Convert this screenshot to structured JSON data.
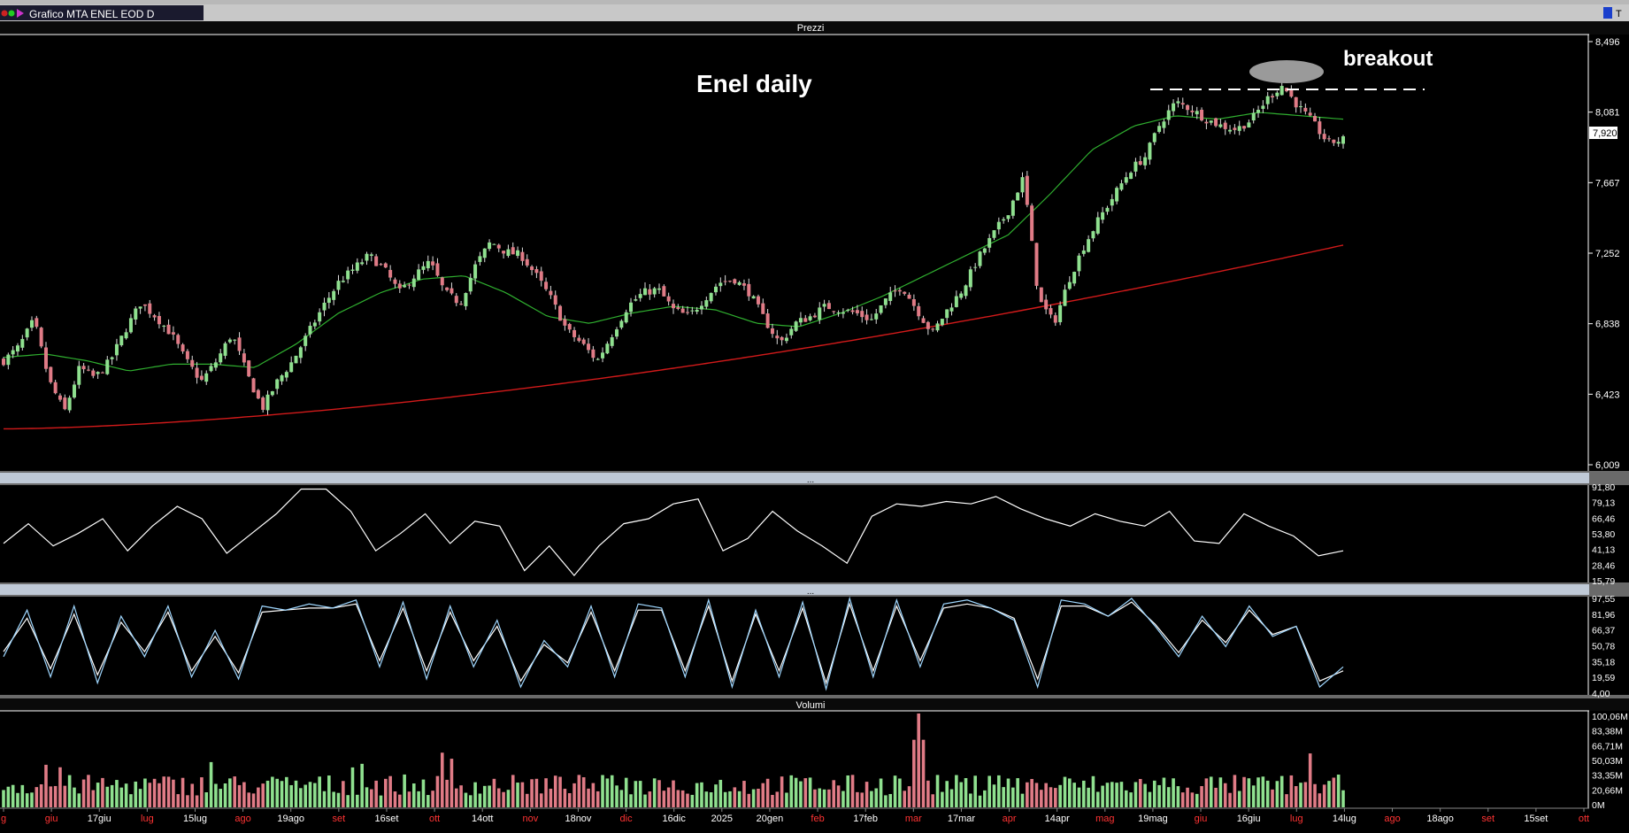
{
  "window": {
    "title": "Grafico MTA ENEL EOD D",
    "price_panel_title": "Prezzi",
    "volume_panel_title": "Volumi",
    "indicator_panel_title": "..."
  },
  "colors": {
    "background": "#000000",
    "up_candle": "#8fe08f",
    "down_candle": "#e07b86",
    "ma_short": "#2fae2f",
    "ma_long": "#d11a1a",
    "rsi_line": "#ffffff",
    "stoch_k": "#9fd7ff",
    "stoch_d": "#ffffff",
    "axis_text": "#ffffff",
    "month_text": "#ff3333"
  },
  "annotations": {
    "title": "Enel daily",
    "breakout": "breakout"
  },
  "price_axis": {
    "ticks": [
      "8,496",
      "8,081",
      "7,667",
      "7,252",
      "6,838",
      "6,423",
      "6,009"
    ],
    "last_price": "7,920"
  },
  "rsi_axis": {
    "ticks": [
      "91,80",
      "79,13",
      "66,46",
      "53,80",
      "41,13",
      "28,46",
      "15,79"
    ]
  },
  "stoch_axis": {
    "ticks": [
      "97,55",
      "81,96",
      "66,37",
      "50,78",
      "35,18",
      "19,59",
      "4,00"
    ]
  },
  "volume_axis": {
    "ticks": [
      "100,06M",
      "83,38M",
      "66,71M",
      "50,03M",
      "33,35M",
      "20,66M",
      "0M"
    ]
  },
  "time_axis": {
    "labels": [
      {
        "text": "g",
        "month": true
      },
      {
        "text": "giu",
        "month": true
      },
      {
        "text": "17giu",
        "month": false
      },
      {
        "text": "lug",
        "month": true
      },
      {
        "text": "15lug",
        "month": false
      },
      {
        "text": "ago",
        "month": true
      },
      {
        "text": "19ago",
        "month": false
      },
      {
        "text": "set",
        "month": true
      },
      {
        "text": "16set",
        "month": false
      },
      {
        "text": "ott",
        "month": true
      },
      {
        "text": "14ott",
        "month": false
      },
      {
        "text": "nov",
        "month": true
      },
      {
        "text": "18nov",
        "month": false
      },
      {
        "text": "dic",
        "month": true
      },
      {
        "text": "16dic",
        "month": false
      },
      {
        "text": "2025",
        "month": false
      },
      {
        "text": "20gen",
        "month": false
      },
      {
        "text": "feb",
        "month": true
      },
      {
        "text": "17feb",
        "month": false
      },
      {
        "text": "mar",
        "month": true
      },
      {
        "text": "17mar",
        "month": false
      },
      {
        "text": "apr",
        "month": true
      },
      {
        "text": "14apr",
        "month": false
      },
      {
        "text": "mag",
        "month": true
      },
      {
        "text": "19mag",
        "month": false
      },
      {
        "text": "giu",
        "month": true
      },
      {
        "text": "16giu",
        "month": false
      },
      {
        "text": "lug",
        "month": true
      },
      {
        "text": "14lug",
        "month": false
      },
      {
        "text": "ago",
        "month": true
      },
      {
        "text": "18ago",
        "month": false
      },
      {
        "text": "set",
        "month": true
      },
      {
        "text": "15set",
        "month": false
      },
      {
        "text": "ott",
        "month": true
      }
    ]
  },
  "chart_data": {
    "type": "candlestick",
    "title": "Enel daily",
    "instrument": "ENEL",
    "ylim": [
      6.009,
      8.496
    ],
    "breakout_level": 8.18,
    "price_anchors": [
      6.62,
      6.7,
      6.86,
      6.5,
      6.32,
      6.58,
      6.52,
      6.62,
      6.8,
      6.96,
      6.88,
      6.78,
      6.62,
      6.5,
      6.62,
      6.78,
      6.54,
      6.34,
      6.5,
      6.62,
      6.78,
      6.94,
      7.08,
      7.16,
      7.24,
      7.16,
      7.02,
      7.12,
      7.2,
      7.02,
      6.96,
      7.18,
      7.32,
      7.26,
      7.24,
      7.12,
      6.98,
      6.8,
      6.72,
      6.62,
      6.78,
      6.94,
      7.02,
      7.04,
      6.92,
      6.88,
      6.98,
      7.08,
      7.1,
      7.02,
      6.86,
      6.72,
      6.84,
      6.88,
      6.94,
      6.92,
      6.9,
      6.86,
      6.98,
      7.06,
      6.92,
      6.78,
      6.92,
      7.04,
      7.22,
      7.36,
      7.5,
      7.7,
      6.98,
      6.84,
      7.1,
      7.3,
      7.46,
      7.6,
      7.74,
      7.82,
      8.02,
      8.14,
      8.1,
      8.04,
      8.0,
      7.98,
      8.04,
      8.16,
      8.24,
      8.12,
      8.02,
      7.9,
      7.92
    ],
    "ma_short_anchors": [
      6.64,
      6.66,
      6.62,
      6.56,
      6.6,
      6.6,
      6.58,
      6.72,
      6.9,
      7.02,
      7.1,
      7.12,
      7.02,
      6.88,
      6.84,
      6.9,
      6.94,
      6.92,
      6.84,
      6.82,
      6.9,
      7.0,
      7.12,
      7.24,
      7.36,
      7.6,
      7.86,
      8.0,
      8.06,
      8.04,
      8.08,
      8.06,
      8.04
    ],
    "ma_long_range": [
      6.22,
      7.3
    ],
    "rsi": [
      46,
      62,
      44,
      54,
      66,
      40,
      60,
      76,
      66,
      38,
      54,
      70,
      90,
      90,
      72,
      40,
      54,
      70,
      46,
      64,
      60,
      24,
      44,
      20,
      44,
      62,
      66,
      78,
      82,
      40,
      50,
      72,
      56,
      44,
      30,
      68,
      78,
      76,
      80,
      78,
      84,
      74,
      66,
      60,
      70,
      64,
      60,
      72,
      48,
      46,
      70,
      60,
      52,
      36,
      40
    ],
    "stochastic_k": [
      40,
      86,
      20,
      90,
      14,
      80,
      40,
      90,
      20,
      66,
      18,
      90,
      86,
      92,
      88,
      96,
      30,
      94,
      18,
      90,
      30,
      76,
      10,
      56,
      30,
      90,
      20,
      92,
      88,
      20,
      96,
      10,
      86,
      20,
      94,
      8,
      98,
      20,
      96,
      30,
      92,
      96,
      88,
      76,
      10,
      96,
      92,
      80,
      98,
      70,
      40,
      80,
      50,
      90,
      60,
      70,
      10,
      30
    ],
    "stochastic_d": [
      45,
      78,
      28,
      82,
      22,
      74,
      45,
      84,
      26,
      60,
      24,
      84,
      86,
      88,
      88,
      92,
      36,
      88,
      26,
      84,
      36,
      70,
      16,
      52,
      34,
      84,
      26,
      86,
      86,
      26,
      90,
      16,
      82,
      26,
      88,
      14,
      92,
      26,
      90,
      36,
      88,
      92,
      88,
      78,
      18,
      90,
      90,
      80,
      94,
      72,
      44,
      76,
      54,
      86,
      62,
      70,
      16,
      26
    ],
    "volume_millions_range": [
      0,
      100.06
    ],
    "volume_spike_millions": 100.06,
    "volume_typical_millions": 25
  }
}
